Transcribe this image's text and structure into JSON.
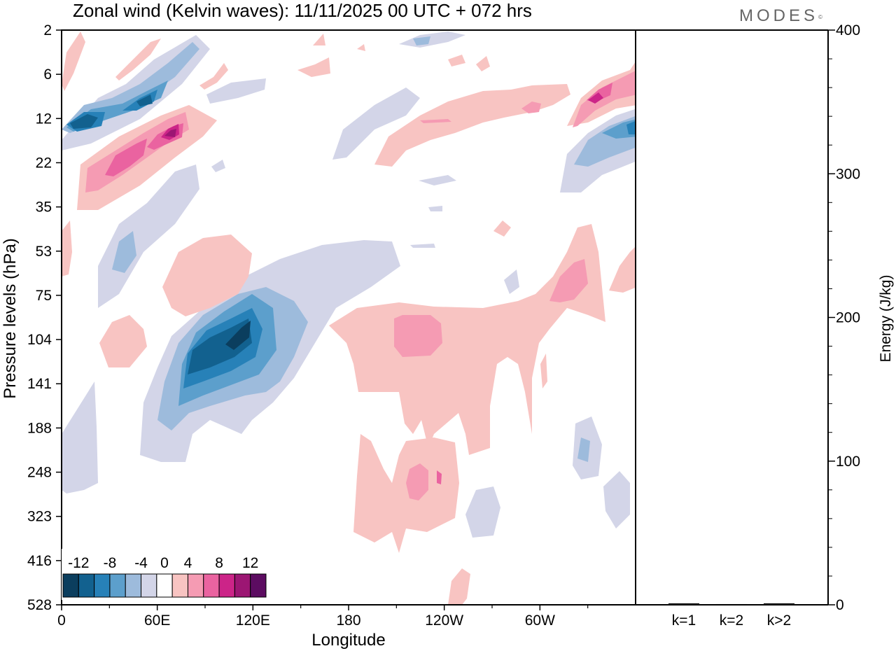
{
  "title": "Zonal wind (Kelvin waves):  11/11/2025  00 UTC  + 072 hrs",
  "brand": "MODES",
  "brand_mark": "©",
  "chart_data": [
    {
      "type": "heatmap",
      "title": "Zonal wind (Kelvin waves):  11/11/2025  00 UTC  + 072 hrs",
      "xlabel": "Longitude",
      "ylabel": "Pressure levels (hPa)",
      "x_ticks": [
        "0",
        "60E",
        "120E",
        "180",
        "120W",
        "60W"
      ],
      "x_tick_lon": [
        0,
        60,
        120,
        180,
        240,
        300
      ],
      "xlim": [
        0,
        360
      ],
      "y_ticks": [
        "2",
        "6",
        "12",
        "22",
        "35",
        "53",
        "75",
        "104",
        "141",
        "188",
        "248",
        "323",
        "416",
        "528"
      ],
      "y_scale": "level index",
      "colorbar": {
        "labels": [
          "-12",
          "-8",
          "-4",
          "0",
          "4",
          "8",
          "12"
        ],
        "levels": [
          -14,
          -12,
          -10,
          -8,
          -6,
          -4,
          -2,
          2,
          4,
          6,
          8,
          10,
          12,
          14
        ],
        "colors": [
          "#0b3e5e",
          "#12618f",
          "#2781b8",
          "#5c9fcc",
          "#9dbbdc",
          "#d3d5e8",
          "#ffffff",
          "#f8c4c2",
          "#f59bb3",
          "#ea63a0",
          "#cc2488",
          "#9c1673",
          "#5c0c61"
        ]
      },
      "regions": [
        {
          "lon": 4,
          "level": 2.1,
          "value": -11,
          "color": "#12618f"
        },
        {
          "lon": 50,
          "level": 1.6,
          "value": -11,
          "color": "#12618f"
        },
        {
          "lon": 67,
          "level": 2.3,
          "value": 13,
          "color": "#9c1673"
        },
        {
          "lon": 30,
          "level": 3.3,
          "value": 8,
          "color": "#ea63a0"
        },
        {
          "lon": 112,
          "level": 7.2,
          "value": -13,
          "color": "#0b3e5e"
        },
        {
          "lon": 210,
          "level": 7.3,
          "value": 6,
          "color": "#f59bb3"
        },
        {
          "lon": 223,
          "level": 10.2,
          "value": 6,
          "color": "#f59bb3"
        },
        {
          "lon": 332,
          "level": 1.5,
          "value": 10,
          "color": "#cc2488"
        },
        {
          "lon": 352,
          "level": 2.1,
          "value": -8,
          "color": "#5c9fcc"
        },
        {
          "lon": 325,
          "level": 5.5,
          "value": 7,
          "color": "#ea63a0"
        },
        {
          "lon": 328,
          "level": 9.5,
          "value": -7,
          "color": "#5c9fcc"
        }
      ]
    },
    {
      "type": "bar",
      "categories": [
        "k=1",
        "k=2",
        "k>2"
      ],
      "values": [
        1,
        0.5,
        1
      ],
      "ylabel": "Energy (J/kg)",
      "ylim": [
        0,
        400
      ],
      "y_ticks": [
        "0",
        "100",
        "200",
        "300",
        "400"
      ]
    }
  ]
}
